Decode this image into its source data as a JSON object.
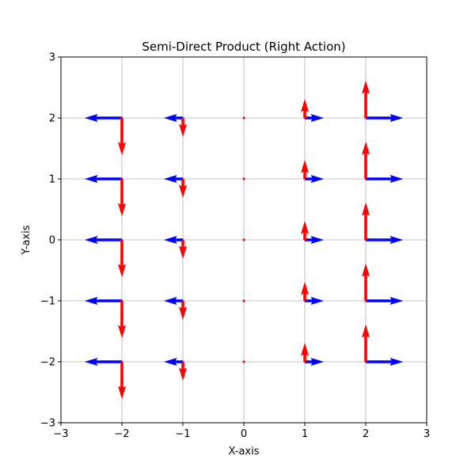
{
  "chart_data": {
    "type": "quiver",
    "title": "Semi-Direct Product (Right Action)",
    "xlabel": "X-axis",
    "ylabel": "Y-axis",
    "xlim": [
      -3,
      3
    ],
    "ylim": [
      -3,
      3
    ],
    "xticks": [
      -3,
      -2,
      -1,
      0,
      1,
      2,
      3
    ],
    "yticks": [
      -3,
      -2,
      -1,
      0,
      1,
      2,
      3
    ],
    "xtick_labels": [
      "−3",
      "−2",
      "−1",
      "0",
      "1",
      "2",
      "3"
    ],
    "ytick_labels": [
      "−3",
      "−2",
      "−1",
      "0",
      "1",
      "2",
      "3"
    ],
    "grid": true,
    "aspect": "equal",
    "grid_points": {
      "x": [
        -2,
        -1,
        0,
        1,
        2
      ],
      "y": [
        -2,
        -1,
        0,
        1,
        2
      ]
    },
    "series": [
      {
        "color": "#0000ff",
        "vector_rule": "u = x, v = 0",
        "vectors": [
          {
            "x": -2,
            "y": -2,
            "u": -2,
            "v": 0
          },
          {
            "x": -1,
            "y": -2,
            "u": -1,
            "v": 0
          },
          {
            "x": 0,
            "y": -2,
            "u": 0,
            "v": 0
          },
          {
            "x": 1,
            "y": -2,
            "u": 1,
            "v": 0
          },
          {
            "x": 2,
            "y": -2,
            "u": 2,
            "v": 0
          },
          {
            "x": -2,
            "y": -1,
            "u": -2,
            "v": 0
          },
          {
            "x": -1,
            "y": -1,
            "u": -1,
            "v": 0
          },
          {
            "x": 0,
            "y": -1,
            "u": 0,
            "v": 0
          },
          {
            "x": 1,
            "y": -1,
            "u": 1,
            "v": 0
          },
          {
            "x": 2,
            "y": -1,
            "u": 2,
            "v": 0
          },
          {
            "x": -2,
            "y": 0,
            "u": -2,
            "v": 0
          },
          {
            "x": -1,
            "y": 0,
            "u": -1,
            "v": 0
          },
          {
            "x": 0,
            "y": 0,
            "u": 0,
            "v": 0
          },
          {
            "x": 1,
            "y": 0,
            "u": 1,
            "v": 0
          },
          {
            "x": 2,
            "y": 0,
            "u": 2,
            "v": 0
          },
          {
            "x": -2,
            "y": 1,
            "u": -2,
            "v": 0
          },
          {
            "x": -1,
            "y": 1,
            "u": -1,
            "v": 0
          },
          {
            "x": 0,
            "y": 1,
            "u": 0,
            "v": 0
          },
          {
            "x": 1,
            "y": 1,
            "u": 1,
            "v": 0
          },
          {
            "x": 2,
            "y": 1,
            "u": 2,
            "v": 0
          },
          {
            "x": -2,
            "y": 2,
            "u": -2,
            "v": 0
          },
          {
            "x": -1,
            "y": 2,
            "u": -1,
            "v": 0
          },
          {
            "x": 0,
            "y": 2,
            "u": 0,
            "v": 0
          },
          {
            "x": 1,
            "y": 2,
            "u": 1,
            "v": 0
          },
          {
            "x": 2,
            "y": 2,
            "u": 2,
            "v": 0
          }
        ]
      },
      {
        "color": "#ff0000",
        "vector_rule": "u = 0, v = x",
        "vectors": [
          {
            "x": -2,
            "y": -2,
            "u": 0,
            "v": -2
          },
          {
            "x": -1,
            "y": -2,
            "u": 0,
            "v": -1
          },
          {
            "x": 0,
            "y": -2,
            "u": 0,
            "v": 0
          },
          {
            "x": 1,
            "y": -2,
            "u": 0,
            "v": 1
          },
          {
            "x": 2,
            "y": -2,
            "u": 0,
            "v": 2
          },
          {
            "x": -2,
            "y": -1,
            "u": 0,
            "v": -2
          },
          {
            "x": -1,
            "y": -1,
            "u": 0,
            "v": -1
          },
          {
            "x": 0,
            "y": -1,
            "u": 0,
            "v": 0
          },
          {
            "x": 1,
            "y": -1,
            "u": 0,
            "v": 1
          },
          {
            "x": 2,
            "y": -1,
            "u": 0,
            "v": 2
          },
          {
            "x": -2,
            "y": 0,
            "u": 0,
            "v": -2
          },
          {
            "x": -1,
            "y": 0,
            "u": 0,
            "v": -1
          },
          {
            "x": 0,
            "y": 0,
            "u": 0,
            "v": 0
          },
          {
            "x": 1,
            "y": 0,
            "u": 0,
            "v": 1
          },
          {
            "x": 2,
            "y": 0,
            "u": 0,
            "v": 2
          },
          {
            "x": -2,
            "y": 1,
            "u": 0,
            "v": -2
          },
          {
            "x": -1,
            "y": 1,
            "u": 0,
            "v": -1
          },
          {
            "x": 0,
            "y": 1,
            "u": 0,
            "v": 0
          },
          {
            "x": 1,
            "y": 1,
            "u": 0,
            "v": 1
          },
          {
            "x": 2,
            "y": 1,
            "u": 0,
            "v": 2
          },
          {
            "x": -2,
            "y": 2,
            "u": 0,
            "v": -2
          },
          {
            "x": -1,
            "y": 2,
            "u": 0,
            "v": -1
          },
          {
            "x": 0,
            "y": 2,
            "u": 0,
            "v": 0
          },
          {
            "x": 1,
            "y": 2,
            "u": 0,
            "v": 1
          },
          {
            "x": 2,
            "y": 2,
            "u": 0,
            "v": 2
          }
        ]
      }
    ]
  }
}
